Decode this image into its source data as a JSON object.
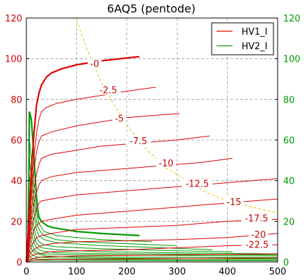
{
  "chart_data": {
    "type": "line",
    "title": "6AQ5 (pentode)",
    "xlabel": "",
    "ylabel": "",
    "xlim": [
      0,
      500
    ],
    "ylim": [
      0,
      120
    ],
    "x_ticks": [
      0,
      100,
      200,
      300,
      400,
      500
    ],
    "y_ticks": [
      0,
      20,
      40,
      60,
      80,
      100,
      120
    ],
    "grid": true,
    "legend_position": "top-right",
    "colors": {
      "hv1": "#dd0000",
      "hv2": "#009900",
      "load_line": "#e6c200"
    },
    "legend": [
      {
        "name": "HV1_I",
        "color": "#dd0000"
      },
      {
        "name": "HV2_I",
        "color": "#009900"
      }
    ],
    "plate_curves": [
      {
        "label": "-0",
        "label_at": [
          136,
          97
        ],
        "bold": true,
        "points": [
          [
            0,
            0
          ],
          [
            5,
            20
          ],
          [
            10,
            45
          ],
          [
            15,
            63
          ],
          [
            20,
            77
          ],
          [
            25,
            83
          ],
          [
            30,
            87
          ],
          [
            40,
            91
          ],
          [
            50,
            93
          ],
          [
            70,
            95
          ],
          [
            100,
            97
          ],
          [
            150,
            99
          ],
          [
            225,
            101
          ]
        ]
      },
      {
        "label": "-2.5",
        "label_at": [
          163,
          84
        ],
        "points": [
          [
            0,
            0
          ],
          [
            5,
            17
          ],
          [
            10,
            37
          ],
          [
            15,
            52
          ],
          [
            20,
            63
          ],
          [
            25,
            70
          ],
          [
            30,
            74
          ],
          [
            40,
            76
          ],
          [
            60,
            78
          ],
          [
            100,
            80
          ],
          [
            150,
            82
          ],
          [
            200,
            84
          ],
          [
            258,
            86
          ]
        ]
      },
      {
        "label": "-5",
        "label_at": [
          185,
          70
        ],
        "points": [
          [
            0,
            0
          ],
          [
            5,
            15
          ],
          [
            10,
            32
          ],
          [
            15,
            45
          ],
          [
            20,
            54
          ],
          [
            25,
            59
          ],
          [
            30,
            62
          ],
          [
            50,
            64
          ],
          [
            100,
            67
          ],
          [
            150,
            69
          ],
          [
            200,
            71
          ],
          [
            250,
            72
          ],
          [
            305,
            73
          ]
        ]
      },
      {
        "label": "-7.5",
        "label_at": [
          223,
          59
        ],
        "points": [
          [
            0,
            0
          ],
          [
            5,
            12
          ],
          [
            10,
            26
          ],
          [
            15,
            36
          ],
          [
            20,
            43
          ],
          [
            25,
            48
          ],
          [
            30,
            51
          ],
          [
            50,
            53
          ],
          [
            100,
            55
          ],
          [
            150,
            57
          ],
          [
            200,
            58
          ],
          [
            250,
            59
          ],
          [
            300,
            60
          ],
          [
            365,
            62
          ]
        ]
      },
      {
        "label": "-10",
        "label_at": [
          278,
          48
        ],
        "points": [
          [
            0,
            0
          ],
          [
            5,
            10
          ],
          [
            10,
            21
          ],
          [
            15,
            29
          ],
          [
            20,
            34
          ],
          [
            25,
            38
          ],
          [
            30,
            40
          ],
          [
            50,
            42
          ],
          [
            100,
            44
          ],
          [
            200,
            46
          ],
          [
            300,
            48
          ],
          [
            350,
            49
          ],
          [
            410,
            51
          ]
        ]
      },
      {
        "label": "-12.5",
        "label_at": [
          340,
          38
        ],
        "points": [
          [
            0,
            0
          ],
          [
            5,
            8
          ],
          [
            10,
            16
          ],
          [
            15,
            22
          ],
          [
            20,
            26
          ],
          [
            25,
            29
          ],
          [
            30,
            30
          ],
          [
            50,
            31
          ],
          [
            100,
            33
          ],
          [
            200,
            35
          ],
          [
            300,
            37
          ],
          [
            400,
            39
          ],
          [
            500,
            41
          ]
        ]
      },
      {
        "label": "-15",
        "label_at": [
          413,
          29
        ],
        "points": [
          [
            0,
            0
          ],
          [
            5,
            6
          ],
          [
            10,
            12
          ],
          [
            15,
            16
          ],
          [
            20,
            18
          ],
          [
            30,
            20
          ],
          [
            50,
            21
          ],
          [
            100,
            23
          ],
          [
            200,
            25
          ],
          [
            300,
            27
          ],
          [
            400,
            29
          ],
          [
            500,
            31
          ]
        ]
      },
      {
        "label": "-17.5",
        "label_at": [
          458,
          21
        ],
        "points": [
          [
            0,
            0
          ],
          [
            5,
            4
          ],
          [
            10,
            8
          ],
          [
            15,
            10
          ],
          [
            20,
            12
          ],
          [
            30,
            13
          ],
          [
            50,
            14
          ],
          [
            100,
            16
          ],
          [
            200,
            17
          ],
          [
            300,
            18
          ],
          [
            400,
            20
          ],
          [
            500,
            21
          ]
        ]
      },
      {
        "label": "-20",
        "label_at": [
          462,
          13
        ],
        "points": [
          [
            0,
            0
          ],
          [
            5,
            3
          ],
          [
            10,
            5
          ],
          [
            20,
            7
          ],
          [
            30,
            8
          ],
          [
            50,
            9
          ],
          [
            100,
            10
          ],
          [
            200,
            10.5
          ],
          [
            300,
            11
          ],
          [
            400,
            12
          ],
          [
            500,
            14
          ]
        ]
      },
      {
        "label": "-22.5",
        "label_at": [
          459,
          8
        ],
        "points": [
          [
            0,
            0
          ],
          [
            5,
            2
          ],
          [
            10,
            3
          ],
          [
            20,
            4
          ],
          [
            50,
            5
          ],
          [
            100,
            5.5
          ],
          [
            200,
            6
          ],
          [
            300,
            7
          ],
          [
            400,
            8
          ],
          [
            500,
            8.5
          ]
        ]
      },
      {
        "label": "",
        "points": [
          [
            0,
            0
          ],
          [
            10,
            1.5
          ],
          [
            30,
            2.5
          ],
          [
            100,
            3
          ],
          [
            300,
            3.5
          ],
          [
            500,
            4
          ]
        ]
      },
      {
        "label": "",
        "points": [
          [
            0,
            0
          ],
          [
            10,
            0.8
          ],
          [
            50,
            1.2
          ],
          [
            200,
            1.5
          ],
          [
            500,
            2
          ]
        ]
      }
    ],
    "screen_curves": [
      {
        "bold": true,
        "points": [
          [
            0,
            0
          ],
          [
            3,
            10
          ],
          [
            5,
            40
          ],
          [
            6,
            74
          ],
          [
            8,
            72
          ],
          [
            10,
            70
          ],
          [
            12,
            63
          ],
          [
            15,
            52
          ],
          [
            18,
            40
          ],
          [
            20,
            32
          ],
          [
            23,
            25
          ],
          [
            25,
            22
          ],
          [
            30,
            20
          ],
          [
            40,
            18
          ],
          [
            50,
            17
          ],
          [
            75,
            16
          ],
          [
            100,
            15
          ],
          [
            150,
            14
          ],
          [
            225,
            13
          ]
        ]
      },
      {
        "points": [
          [
            0,
            0
          ],
          [
            4,
            10
          ],
          [
            5,
            64
          ],
          [
            8,
            55
          ],
          [
            12,
            45
          ],
          [
            16,
            34
          ],
          [
            20,
            25
          ],
          [
            25,
            19
          ],
          [
            35,
            15
          ],
          [
            60,
            13
          ],
          [
            100,
            12
          ],
          [
            150,
            11
          ],
          [
            250,
            10
          ]
        ]
      },
      {
        "points": [
          [
            0,
            0
          ],
          [
            4,
            8
          ],
          [
            5,
            55
          ],
          [
            8,
            46
          ],
          [
            12,
            36
          ],
          [
            16,
            28
          ],
          [
            20,
            20
          ],
          [
            25,
            16
          ],
          [
            35,
            13
          ],
          [
            60,
            11
          ],
          [
            100,
            10
          ],
          [
            200,
            9
          ],
          [
            300,
            8
          ]
        ]
      },
      {
        "points": [
          [
            0,
            0
          ],
          [
            4,
            7
          ],
          [
            5,
            45
          ],
          [
            8,
            38
          ],
          [
            12,
            30
          ],
          [
            16,
            22
          ],
          [
            20,
            16
          ],
          [
            25,
            13
          ],
          [
            35,
            11
          ],
          [
            60,
            9.5
          ],
          [
            150,
            8
          ],
          [
            250,
            7.2
          ],
          [
            370,
            6
          ]
        ]
      },
      {
        "points": [
          [
            0,
            0
          ],
          [
            4,
            6
          ],
          [
            5,
            36
          ],
          [
            8,
            30
          ],
          [
            12,
            22
          ],
          [
            16,
            16
          ],
          [
            20,
            12
          ],
          [
            25,
            10
          ],
          [
            35,
            8.5
          ],
          [
            60,
            7.5
          ],
          [
            150,
            6.5
          ],
          [
            300,
            5.5
          ],
          [
            410,
            5
          ]
        ]
      },
      {
        "points": [
          [
            0,
            0
          ],
          [
            4,
            5
          ],
          [
            5,
            28
          ],
          [
            8,
            23
          ],
          [
            12,
            17
          ],
          [
            16,
            12
          ],
          [
            20,
            9
          ],
          [
            30,
            7
          ],
          [
            60,
            6
          ],
          [
            150,
            5
          ],
          [
            300,
            4.5
          ],
          [
            500,
            4
          ]
        ]
      },
      {
        "points": [
          [
            0,
            0
          ],
          [
            4,
            4
          ],
          [
            5,
            21
          ],
          [
            8,
            17
          ],
          [
            12,
            12
          ],
          [
            16,
            9
          ],
          [
            20,
            7
          ],
          [
            30,
            5.5
          ],
          [
            60,
            4.5
          ],
          [
            200,
            4
          ],
          [
            500,
            3.5
          ]
        ]
      },
      {
        "points": [
          [
            0,
            0
          ],
          [
            4,
            3
          ],
          [
            5,
            15
          ],
          [
            8,
            12
          ],
          [
            12,
            8
          ],
          [
            16,
            6
          ],
          [
            20,
            5
          ],
          [
            30,
            4
          ],
          [
            100,
            3.5
          ],
          [
            500,
            3
          ]
        ]
      },
      {
        "points": [
          [
            0,
            0
          ],
          [
            4,
            2
          ],
          [
            5,
            10
          ],
          [
            8,
            8
          ],
          [
            12,
            5.5
          ],
          [
            20,
            4
          ],
          [
            40,
            3
          ],
          [
            100,
            2.5
          ],
          [
            500,
            2.2
          ]
        ]
      },
      {
        "points": [
          [
            0,
            0
          ],
          [
            4,
            1.5
          ],
          [
            5,
            6
          ],
          [
            8,
            4.5
          ],
          [
            12,
            3.5
          ],
          [
            20,
            2.5
          ],
          [
            50,
            2
          ],
          [
            500,
            1.5
          ]
        ]
      },
      {
        "points": [
          [
            0,
            0
          ],
          [
            5,
            3
          ],
          [
            10,
            2
          ],
          [
            20,
            1.4
          ],
          [
            60,
            1.2
          ],
          [
            500,
            1
          ]
        ]
      },
      {
        "points": [
          [
            0,
            0
          ],
          [
            5,
            1.5
          ],
          [
            10,
            1
          ],
          [
            50,
            0.7
          ],
          [
            500,
            0.6
          ]
        ]
      }
    ],
    "load_line": {
      "points": [
        [
          100,
          119
        ],
        [
          120,
          105
        ],
        [
          150,
          88
        ],
        [
          180,
          75
        ],
        [
          210,
          64
        ],
        [
          240,
          55
        ],
        [
          280,
          46
        ],
        [
          320,
          40
        ],
        [
          360,
          34
        ],
        [
          400,
          30
        ],
        [
          450,
          27
        ],
        [
          500,
          24
        ]
      ]
    }
  }
}
